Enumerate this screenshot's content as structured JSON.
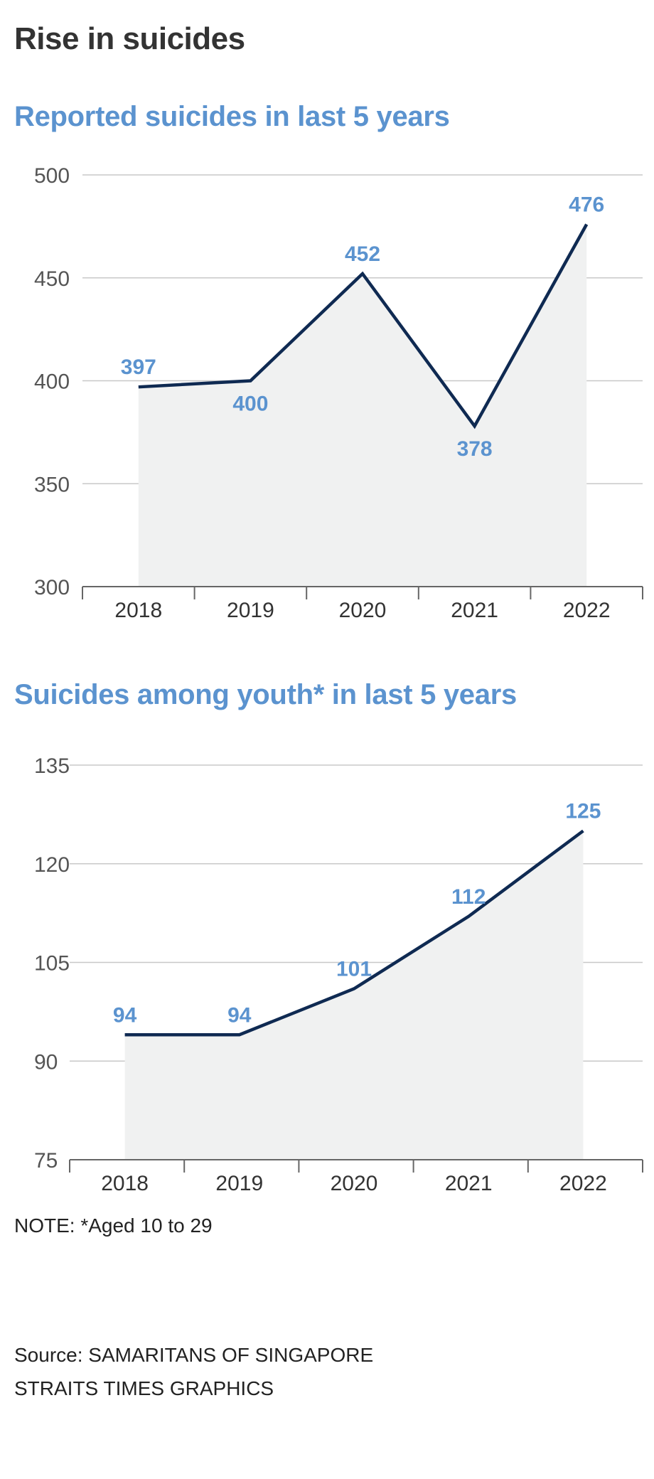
{
  "header": {
    "title": "Rise in suicides"
  },
  "chart_data": [
    {
      "type": "area",
      "title": "Reported suicides in last 5 years",
      "categories": [
        "2018",
        "2019",
        "2020",
        "2021",
        "2022"
      ],
      "values": [
        397,
        400,
        452,
        378,
        476
      ],
      "label_position": [
        "above",
        "below",
        "above",
        "below",
        "above"
      ],
      "yticks": [
        300,
        350,
        400,
        450,
        500
      ],
      "ylim": [
        300,
        500
      ],
      "grid": true,
      "colors": {
        "line": "#0f2a52",
        "fill": "#f0f1f1",
        "label": "#5b93cf",
        "grid": "#c8c8c8"
      }
    },
    {
      "type": "area",
      "title": "Suicides among youth* in last 5 years",
      "categories": [
        "2018",
        "2019",
        "2020",
        "2021",
        "2022"
      ],
      "values": [
        94,
        94,
        101,
        112,
        125
      ],
      "label_position": [
        "above",
        "above",
        "above",
        "above",
        "above"
      ],
      "yticks": [
        75,
        90,
        105,
        120,
        135
      ],
      "ylim": [
        75,
        135
      ],
      "grid": true,
      "colors": {
        "line": "#0f2a52",
        "fill": "#f0f1f1",
        "label": "#5b93cf",
        "grid": "#c8c8c8"
      }
    }
  ],
  "footer": {
    "note": "NOTE: *Aged 10 to 29",
    "source_line1": "Source: SAMARITANS OF SINGAPORE",
    "source_line2": "STRAITS TIMES GRAPHICS"
  }
}
